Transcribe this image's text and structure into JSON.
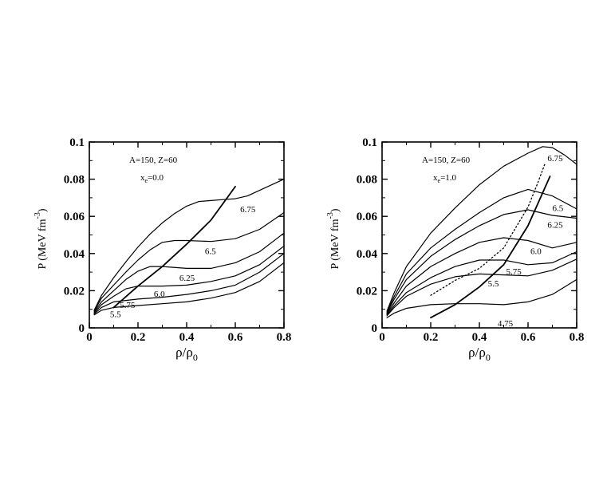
{
  "chart_data": [
    {
      "type": "line",
      "panel": "left",
      "annotations": [
        "A=150, Z=60",
        "x",
        "e",
        "=0.0"
      ],
      "ylabel": "P (MeV fm",
      "ylabel_sup": "-3",
      "ylabel_close": ")",
      "xlabel": "ρ/ρ",
      "xlabel_sub": "0",
      "xlim": [
        0,
        0.8
      ],
      "ylim": [
        0,
        0.1
      ],
      "xticks": [
        0,
        0.2,
        0.4,
        0.6,
        0.8
      ],
      "xtick_labels": [
        "0",
        "0.2",
        "0.4",
        "0.6",
        "0.8"
      ],
      "yticks": [
        0,
        0.02,
        0.04,
        0.06,
        0.08,
        0.1
      ],
      "ytick_labels": [
        "0",
        "0.02",
        "0.04",
        "0.06",
        "0.08",
        "0.1"
      ],
      "series": [
        {
          "name": "5.5",
          "label": "5.5",
          "label_at": [
            0.085,
            0.0075
          ],
          "points": [
            [
              0.02,
              0.007
            ],
            [
              0.05,
              0.0095
            ],
            [
              0.1,
              0.011
            ],
            [
              0.2,
              0.012
            ],
            [
              0.3,
              0.013
            ],
            [
              0.4,
              0.014
            ],
            [
              0.5,
              0.016
            ],
            [
              0.6,
              0.019
            ],
            [
              0.7,
              0.025
            ],
            [
              0.8,
              0.035
            ]
          ]
        },
        {
          "name": "5.75",
          "label": "5.75",
          "label_at": [
            0.125,
            0.0125
          ],
          "points": [
            [
              0.02,
              0.0075
            ],
            [
              0.05,
              0.011
            ],
            [
              0.1,
              0.014
            ],
            [
              0.2,
              0.0155
            ],
            [
              0.3,
              0.0165
            ],
            [
              0.4,
              0.018
            ],
            [
              0.5,
              0.02
            ],
            [
              0.6,
              0.023
            ],
            [
              0.7,
              0.03
            ],
            [
              0.8,
              0.04
            ]
          ]
        },
        {
          "name": "6.0",
          "label": "6.0",
          "label_at": [
            0.265,
            0.0185
          ],
          "points": [
            [
              0.02,
              0.008
            ],
            [
              0.05,
              0.0125
            ],
            [
              0.1,
              0.017
            ],
            [
              0.15,
              0.021
            ],
            [
              0.2,
              0.0225
            ],
            [
              0.3,
              0.0225
            ],
            [
              0.4,
              0.023
            ],
            [
              0.5,
              0.025
            ],
            [
              0.6,
              0.028
            ],
            [
              0.7,
              0.034
            ],
            [
              0.8,
              0.044
            ]
          ]
        },
        {
          "name": "6.25",
          "label": "6.25",
          "label_at": [
            0.37,
            0.027
          ],
          "points": [
            [
              0.02,
              0.0085
            ],
            [
              0.05,
              0.014
            ],
            [
              0.1,
              0.02
            ],
            [
              0.15,
              0.026
            ],
            [
              0.2,
              0.0305
            ],
            [
              0.25,
              0.033
            ],
            [
              0.3,
              0.033
            ],
            [
              0.4,
              0.032
            ],
            [
              0.5,
              0.032
            ],
            [
              0.6,
              0.035
            ],
            [
              0.7,
              0.041
            ],
            [
              0.8,
              0.051
            ]
          ]
        },
        {
          "name": "6.5",
          "label": "6.5",
          "label_at": [
            0.475,
            0.0415
          ],
          "points": [
            [
              0.02,
              0.009
            ],
            [
              0.05,
              0.016
            ],
            [
              0.1,
              0.023
            ],
            [
              0.15,
              0.03
            ],
            [
              0.2,
              0.0365
            ],
            [
              0.25,
              0.042
            ],
            [
              0.3,
              0.046
            ],
            [
              0.35,
              0.047
            ],
            [
              0.4,
              0.047
            ],
            [
              0.5,
              0.0465
            ],
            [
              0.6,
              0.048
            ],
            [
              0.7,
              0.053
            ],
            [
              0.8,
              0.062
            ]
          ]
        },
        {
          "name": "6.75",
          "label": "6.75",
          "label_at": [
            0.62,
            0.064
          ],
          "points": [
            [
              0.02,
              0.0095
            ],
            [
              0.05,
              0.0175
            ],
            [
              0.1,
              0.027
            ],
            [
              0.15,
              0.0355
            ],
            [
              0.2,
              0.0435
            ],
            [
              0.25,
              0.0505
            ],
            [
              0.3,
              0.0565
            ],
            [
              0.35,
              0.0615
            ],
            [
              0.4,
              0.0655
            ],
            [
              0.45,
              0.068
            ],
            [
              0.5,
              0.0685
            ],
            [
              0.55,
              0.069
            ],
            [
              0.6,
              0.0695
            ],
            [
              0.65,
              0.071
            ],
            [
              0.7,
              0.074
            ],
            [
              0.8,
              0.08
            ]
          ]
        },
        {
          "name": "spinodal",
          "label": "",
          "label_at": null,
          "heavy": true,
          "points": [
            [
              0.1,
              0.011
            ],
            [
              0.2,
              0.0225
            ],
            [
              0.3,
              0.033
            ],
            [
              0.4,
              0.045
            ],
            [
              0.5,
              0.058
            ],
            [
              0.6,
              0.076
            ]
          ]
        }
      ]
    },
    {
      "type": "line",
      "panel": "right",
      "annotations": [
        "A=150, Z=60",
        "x",
        "e",
        "=1.0"
      ],
      "ylabel": "P (MeV fm",
      "ylabel_sup": "-3",
      "ylabel_close": ")",
      "xlabel": "ρ/ρ",
      "xlabel_sub": "0",
      "xlim": [
        0,
        0.8
      ],
      "ylim": [
        0,
        0.1
      ],
      "xticks": [
        0,
        0.2,
        0.4,
        0.6,
        0.8
      ],
      "xtick_labels": [
        "0",
        "0.2",
        "0.4",
        "0.6",
        "0.8"
      ],
      "yticks": [
        0,
        0.02,
        0.04,
        0.06,
        0.08,
        0.1
      ],
      "ytick_labels": [
        "0",
        "0.02",
        "0.04",
        "0.06",
        "0.08",
        "0.1"
      ],
      "series": [
        {
          "name": "4.75",
          "label": "4.75",
          "label_at": [
            0.475,
            0.0025
          ],
          "points": [
            [
              0.02,
              0.0055
            ],
            [
              0.05,
              0.008
            ],
            [
              0.1,
              0.0105
            ],
            [
              0.2,
              0.0125
            ],
            [
              0.3,
              0.013
            ],
            [
              0.4,
              0.013
            ],
            [
              0.5,
              0.0125
            ],
            [
              0.6,
              0.014
            ],
            [
              0.7,
              0.018
            ],
            [
              0.8,
              0.026
            ]
          ]
        },
        {
          "name": "5.5",
          "label": "5.5",
          "label_at": [
            0.435,
            0.024
          ],
          "points": [
            [
              0.02,
              0.0065
            ],
            [
              0.05,
              0.011
            ],
            [
              0.1,
              0.017
            ],
            [
              0.2,
              0.0235
            ],
            [
              0.3,
              0.0275
            ],
            [
              0.4,
              0.029
            ],
            [
              0.5,
              0.0285
            ],
            [
              0.6,
              0.028
            ],
            [
              0.7,
              0.031
            ],
            [
              0.8,
              0.037
            ]
          ]
        },
        {
          "name": "5.75",
          "label": "5.75",
          "label_at": [
            0.51,
            0.0305
          ],
          "points": [
            [
              0.02,
              0.007
            ],
            [
              0.05,
              0.012
            ],
            [
              0.1,
              0.019
            ],
            [
              0.2,
              0.027
            ],
            [
              0.3,
              0.033
            ],
            [
              0.4,
              0.0365
            ],
            [
              0.5,
              0.0365
            ],
            [
              0.6,
              0.034
            ],
            [
              0.7,
              0.035
            ],
            [
              0.8,
              0.041
            ]
          ]
        },
        {
          "name": "6.0",
          "label": "6.0",
          "label_at": [
            0.61,
            0.0415
          ],
          "points": [
            [
              0.02,
              0.0075
            ],
            [
              0.05,
              0.0135
            ],
            [
              0.1,
              0.0225
            ],
            [
              0.2,
              0.033
            ],
            [
              0.3,
              0.04
            ],
            [
              0.4,
              0.046
            ],
            [
              0.5,
              0.0485
            ],
            [
              0.6,
              0.047
            ],
            [
              0.7,
              0.043
            ],
            [
              0.8,
              0.046
            ]
          ]
        },
        {
          "name": "6.25",
          "label": "6.25",
          "label_at": [
            0.68,
            0.0555
          ],
          "points": [
            [
              0.02,
              0.008
            ],
            [
              0.05,
              0.0155
            ],
            [
              0.1,
              0.026
            ],
            [
              0.2,
              0.0385
            ],
            [
              0.3,
              0.0475
            ],
            [
              0.4,
              0.055
            ],
            [
              0.5,
              0.061
            ],
            [
              0.6,
              0.0635
            ],
            [
              0.7,
              0.0605
            ],
            [
              0.8,
              0.059
            ]
          ]
        },
        {
          "name": "6.5",
          "label": "6.5",
          "label_at": [
            0.7,
            0.0645
          ],
          "points": [
            [
              0.02,
              0.0085
            ],
            [
              0.05,
              0.017
            ],
            [
              0.1,
              0.029
            ],
            [
              0.2,
              0.043
            ],
            [
              0.3,
              0.053
            ],
            [
              0.4,
              0.062
            ],
            [
              0.5,
              0.07
            ],
            [
              0.6,
              0.0745
            ],
            [
              0.7,
              0.071
            ],
            [
              0.8,
              0.064
            ]
          ]
        },
        {
          "name": "6.75",
          "label": "6.75",
          "label_at": [
            0.68,
            0.0915
          ],
          "points": [
            [
              0.02,
              0.009
            ],
            [
              0.05,
              0.019
            ],
            [
              0.1,
              0.033
            ],
            [
              0.2,
              0.051
            ],
            [
              0.3,
              0.0645
            ],
            [
              0.4,
              0.077
            ],
            [
              0.5,
              0.087
            ],
            [
              0.6,
              0.094
            ],
            [
              0.66,
              0.0975
            ],
            [
              0.7,
              0.097
            ],
            [
              0.75,
              0.093
            ],
            [
              0.8,
              0.088
            ]
          ]
        },
        {
          "name": "spinodal",
          "label": "",
          "label_at": null,
          "heavy": true,
          "points": [
            [
              0.2,
              0.0055
            ],
            [
              0.3,
              0.0125
            ],
            [
              0.4,
              0.022
            ],
            [
              0.5,
              0.034
            ],
            [
              0.6,
              0.055
            ],
            [
              0.69,
              0.0815
            ]
          ]
        },
        {
          "name": "coexistence",
          "label": "",
          "label_at": null,
          "dotted": true,
          "points": [
            [
              0.2,
              0.0175
            ],
            [
              0.3,
              0.0255
            ],
            [
              0.4,
              0.032
            ],
            [
              0.5,
              0.043
            ],
            [
              0.6,
              0.065
            ],
            [
              0.64,
              0.078
            ],
            [
              0.67,
              0.0885
            ]
          ]
        }
      ]
    }
  ]
}
